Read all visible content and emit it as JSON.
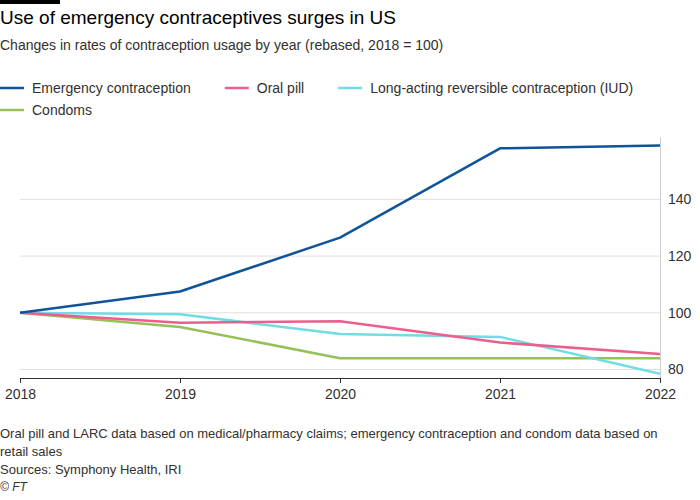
{
  "chart_data": {
    "type": "line",
    "title": "Use of emergency contraceptives surges in US",
    "subtitle": "Changes in rates of contraception usage by year (rebased, 2018 = 100)",
    "x": [
      2018,
      2019,
      2020,
      2021,
      2022
    ],
    "xlim": [
      2018,
      2022
    ],
    "xticks": [
      2018,
      2019,
      2020,
      2021,
      2022
    ],
    "ylim": [
      77,
      162
    ],
    "yticks": [
      80,
      100,
      120,
      140
    ],
    "grid": true,
    "legend": "top",
    "series": [
      {
        "name": "Emergency contraception",
        "color": "#0f5499",
        "values": [
          100,
          107.5,
          126.5,
          158,
          159
        ]
      },
      {
        "name": "Oral pill",
        "color": "#eb5e8d",
        "values": [
          100,
          96.5,
          97,
          89.5,
          85.5
        ]
      },
      {
        "name": "Long-acting reversible contraception (IUD)",
        "color": "#70dce6",
        "values": [
          100,
          99.5,
          92.5,
          91.5,
          78.5
        ]
      },
      {
        "name": "Condoms",
        "color": "#96c05a",
        "values": [
          100,
          95,
          84,
          84,
          84
        ]
      }
    ],
    "notes": [
      "Oral pill and LARC data based on medical/pharmacy claims; emergency contraception and condom data based on",
      "retail sales"
    ],
    "source": "Sources: Symphony Health, IRI",
    "credit": "© FT"
  }
}
